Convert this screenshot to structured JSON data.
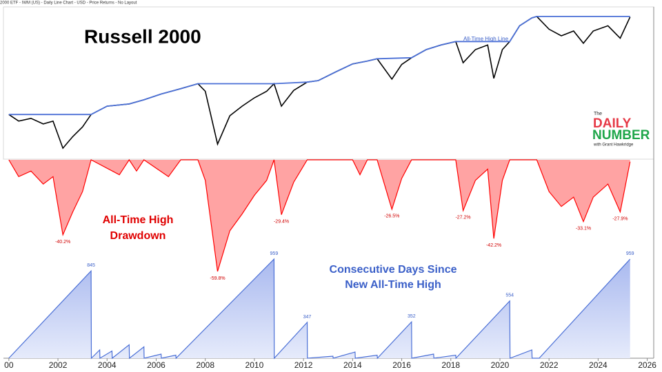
{
  "header": "2000 ETF - IWM (US) - Daily Line Chart - USD - Price Returns - No Layout",
  "logo": {
    "line1": "The",
    "line2": "DAILY",
    "line3": "NUMBER",
    "line4": "with Grant Hawkridge"
  },
  "chart_data": [
    {
      "type": "line",
      "title": "Russell 2000",
      "annotation": "All-Time High Line",
      "log": true,
      "xlim": [
        1999.78,
        2026.32
      ],
      "ylim": [
        28,
        260
      ],
      "series": [
        {
          "color": "#000000",
          "x": [
            2000,
            2000.4,
            2000.9,
            2001.4,
            2001.8,
            2002.2,
            2002.6,
            2003.0,
            2003.35,
            2004,
            2004.9,
            2005.5,
            2006.2,
            2007,
            2007.7,
            2008.0,
            2008.5,
            2009,
            2009.5,
            2010,
            2010.5,
            2010.8,
            2011.1,
            2011.6,
            2012.15,
            2012.6,
            2013.3,
            2014,
            2014.6,
            2015.0,
            2015.6,
            2016.0,
            2016.4,
            2017,
            2017.6,
            2018.2,
            2018.5,
            2019,
            2019.5,
            2019.75,
            2020.1,
            2020.4,
            2020.8,
            2021.3,
            2021.5,
            2022,
            2022.5,
            2023,
            2023.4,
            2023.8,
            2024.4,
            2024.9,
            2025.3
          ],
          "values": [
            53,
            48,
            50,
            46,
            48,
            32,
            38,
            44,
            53,
            60,
            62,
            66,
            72,
            78,
            84,
            75,
            34,
            52,
            60,
            68,
            75,
            84,
            60,
            76,
            86,
            88,
            100,
            113,
            118,
            122,
            90,
            112,
            124,
            140,
            150,
            158,
            115,
            140,
            150,
            91,
            140,
            158,
            200,
            225,
            230,
            190,
            172,
            185,
            154,
            185,
            200,
            166,
            228
          ]
        },
        {
          "color": "#4a6fd6",
          "x": [
            2000,
            2003.35,
            2004,
            2004.9,
            2005.5,
            2006.2,
            2007,
            2007.7,
            2010.8,
            2012.15,
            2012.6,
            2013.3,
            2014,
            2014.6,
            2015.0,
            2016.4,
            2017,
            2017.6,
            2018.2,
            2020.4,
            2020.8,
            2021.3,
            2021.5,
            2025.3
          ],
          "values": [
            53,
            53,
            60,
            62,
            66,
            72,
            78,
            84,
            84,
            86,
            88,
            100,
            113,
            118,
            122,
            124,
            140,
            150,
            158,
            158,
            200,
            225,
            230,
            230
          ]
        }
      ]
    },
    {
      "type": "area",
      "annotation": [
        "All-Time High",
        "Drawdown"
      ],
      "color": "#ff0000",
      "fill": "#ffa3a3",
      "xlim": [
        1999.78,
        2026.32
      ],
      "ylim": [
        -62,
        0
      ],
      "x": [
        2000,
        2000.4,
        2000.9,
        2001.4,
        2001.8,
        2002.2,
        2002.6,
        2003.0,
        2003.35,
        2004.5,
        2004.9,
        2005.2,
        2005.5,
        2006.5,
        2007,
        2007.7,
        2008.0,
        2008.5,
        2009,
        2009.5,
        2010,
        2010.5,
        2010.8,
        2011.1,
        2011.6,
        2012.15,
        2012.6,
        2013.3,
        2014,
        2014.3,
        2014.6,
        2015.0,
        2015.6,
        2016.0,
        2016.4,
        2017,
        2017.6,
        2018.2,
        2018.5,
        2019,
        2019.5,
        2019.75,
        2020.1,
        2020.4,
        2020.8,
        2021.5,
        2022,
        2022.5,
        2023,
        2023.4,
        2023.8,
        2024.4,
        2024.9,
        2025.3
      ],
      "values": [
        0,
        -9,
        -6,
        -13,
        -9,
        -40.2,
        -28,
        -17,
        0,
        -8,
        0,
        -6,
        0,
        -9,
        0,
        0,
        -11,
        -59.8,
        -38,
        -29,
        -19,
        -11,
        0,
        -29.4,
        -12,
        0,
        0,
        0,
        0,
        -8,
        0,
        0,
        -26.5,
        -10,
        0,
        0,
        0,
        0,
        -27.2,
        -11,
        -5,
        -42.2,
        -11,
        0,
        0,
        0,
        -17,
        -25,
        -20,
        -33.1,
        -20,
        -13,
        -27.9,
        -1
      ],
      "value_labels": [
        null,
        null,
        null,
        null,
        null,
        "-40.2%",
        null,
        null,
        null,
        null,
        null,
        null,
        null,
        null,
        null,
        null,
        null,
        "-59.8%",
        null,
        null,
        null,
        null,
        null,
        "-29.4%",
        null,
        null,
        null,
        null,
        null,
        null,
        null,
        null,
        "-26.5%",
        null,
        null,
        null,
        null,
        null,
        "-27.2%",
        null,
        null,
        "-42.2%",
        null,
        null,
        null,
        null,
        null,
        null,
        null,
        "-33.1%",
        null,
        null,
        "-27.9%",
        null
      ]
    },
    {
      "type": "area",
      "annotation": [
        "Consecutive Days Since",
        "New All-Time High"
      ],
      "color": "#4a6fd6",
      "fill": "#b3c1f1",
      "xlim": [
        1999.78,
        2026.32
      ],
      "ylim": [
        0,
        1000
      ],
      "x": [
        2000,
        2003.35,
        2003.36,
        2003.7,
        2003.71,
        2004.2,
        2004.21,
        2004.9,
        2004.91,
        2005.5,
        2005.51,
        2006.2,
        2006.21,
        2006.8,
        2006.81,
        2010.8,
        2010.81,
        2012.15,
        2012.16,
        2013.2,
        2013.21,
        2014.1,
        2014.11,
        2015.0,
        2015.01,
        2016.4,
        2016.41,
        2017.3,
        2017.31,
        2018.2,
        2018.21,
        2020.4,
        2020.41,
        2021.3,
        2021.31,
        2021.6,
        2025.3
      ],
      "values": [
        0,
        845,
        0,
        80,
        0,
        70,
        0,
        130,
        0,
        110,
        0,
        40,
        0,
        30,
        0,
        959,
        0,
        347,
        0,
        20,
        0,
        60,
        0,
        30,
        0,
        352,
        0,
        40,
        0,
        30,
        0,
        554,
        0,
        80,
        0,
        0,
        959
      ],
      "value_labels": [
        null,
        "845",
        null,
        null,
        null,
        null,
        null,
        null,
        null,
        null,
        null,
        null,
        null,
        null,
        null,
        "959",
        null,
        "347",
        null,
        null,
        null,
        null,
        null,
        null,
        null,
        "352",
        null,
        null,
        null,
        null,
        null,
        "554",
        null,
        null,
        null,
        null,
        "959"
      ],
      "xticks": [
        {
          "value": 2000,
          "label": "00"
        },
        2002,
        2004,
        2006,
        2008,
        2010,
        2012,
        2014,
        2016,
        2018,
        2020,
        2022,
        2024,
        2026
      ]
    }
  ]
}
